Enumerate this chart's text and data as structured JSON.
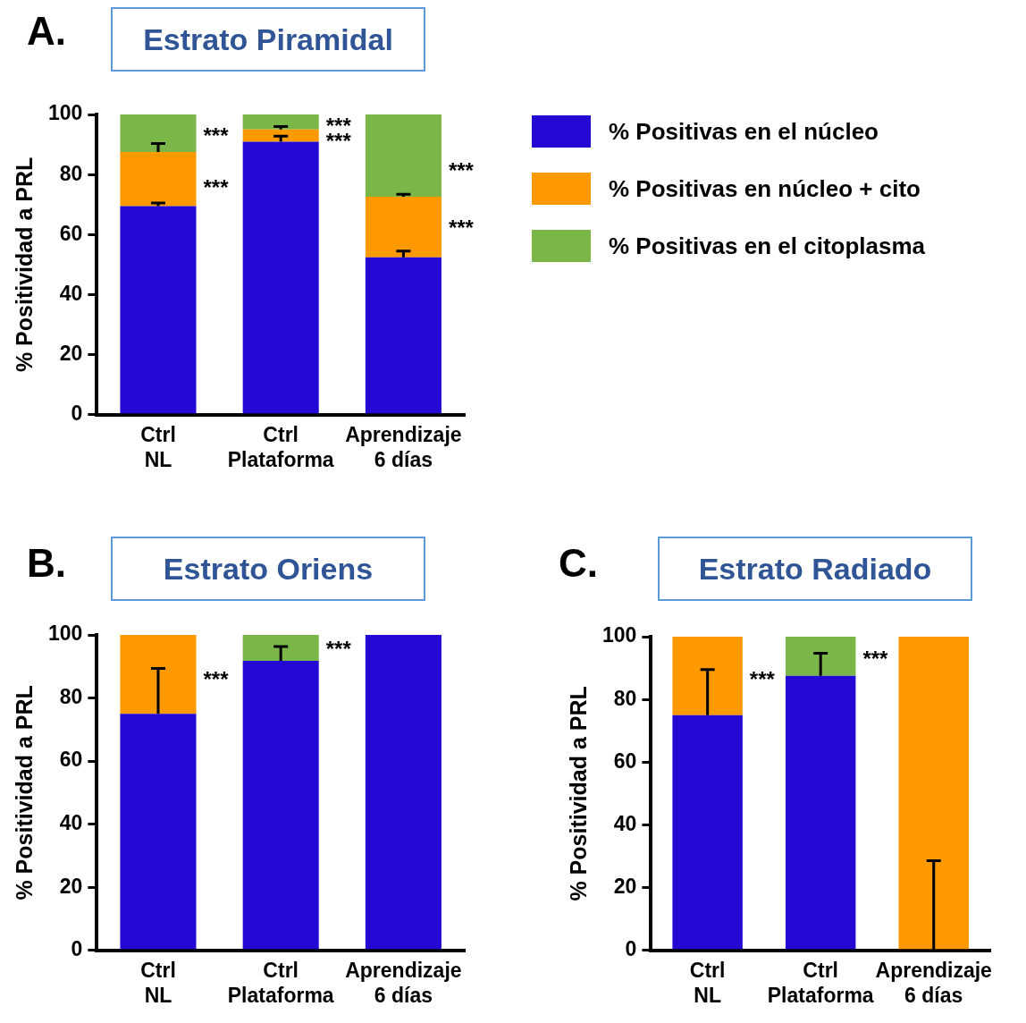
{
  "chart_data": [
    {
      "type": "bar",
      "stacked": true,
      "title": "Estrato Piramidal",
      "ylabel": "% Positividad a PRL",
      "categories": [
        "Ctrl\nNL",
        "Ctrl\nPlataforma",
        "Aprendizaje\n6 días"
      ],
      "ylim": [
        0,
        100
      ],
      "yticks": [
        0,
        20,
        40,
        60,
        80,
        100
      ],
      "grid": false,
      "legend": "right",
      "series": [
        {
          "name": "% Positivas en el núcleo",
          "color": "#2309d3",
          "values": [
            69.5,
            90.9,
            52.4
          ],
          "errors": [
            [
              69.5,
              70.5
            ],
            [
              90.9,
              92.8
            ],
            [
              52.4,
              54.5
            ]
          ]
        },
        {
          "name": "% Positivas en núcleo + cito",
          "color": "#ff9900",
          "values": [
            18,
            4.1,
            20.2
          ],
          "errors": [
            [
              87.5,
              90.3
            ],
            [
              95,
              96
            ],
            [
              72.6,
              73.4
            ]
          ]
        },
        {
          "name": "% Positivas en el citoplasma",
          "color": "#7ab648",
          "values": [
            12.5,
            5,
            27.4
          ]
        }
      ],
      "annotations": [
        "A.",
        "***",
        "***",
        "***",
        "***",
        "***",
        "***"
      ]
    },
    {
      "type": "bar",
      "stacked": true,
      "title": "Estrato Oriens",
      "ylabel": "% Positividad a PRL",
      "categories": [
        "Ctrl\nNL",
        "Ctrl\nPlataforma",
        "Aprendizaje\n6 días"
      ],
      "ylim": [
        0,
        100
      ],
      "yticks": [
        0,
        20,
        40,
        60,
        80,
        100
      ],
      "grid": false,
      "series": [
        {
          "color": "#2309d3",
          "values": [
            75,
            91.8,
            100
          ],
          "errors": [
            [
              75,
              89.4
            ],
            [
              91.8,
              96.3
            ],
            null
          ]
        },
        {
          "color": "#ff9900",
          "values": [
            25,
            null,
            null
          ]
        },
        {
          "color": "#7ab648",
          "values": [
            null,
            8.2,
            null
          ]
        }
      ],
      "annotations": [
        "B.",
        "***",
        "***"
      ]
    },
    {
      "type": "bar",
      "stacked": true,
      "title": "Estrato Radiado",
      "ylabel": "% Positividad a PRL",
      "categories": [
        "Ctrl\nNL",
        "Ctrl\nPlataforma",
        "Aprendizaje\n6 días"
      ],
      "ylim": [
        0,
        100
      ],
      "yticks": [
        0,
        20,
        40,
        60,
        80,
        100
      ],
      "grid": false,
      "series": [
        {
          "color": "#2309d3",
          "values": [
            75,
            87.5,
            0
          ],
          "errors": [
            [
              75,
              89.5
            ],
            [
              87.5,
              94.7
            ],
            [
              0,
              28.6
            ]
          ]
        },
        {
          "color": "#ff9900",
          "values": [
            25,
            null,
            100
          ]
        },
        {
          "color": "#7ab648",
          "values": [
            null,
            12.5,
            null
          ]
        }
      ],
      "annotations": [
        "C.",
        "***",
        "***"
      ]
    }
  ]
}
